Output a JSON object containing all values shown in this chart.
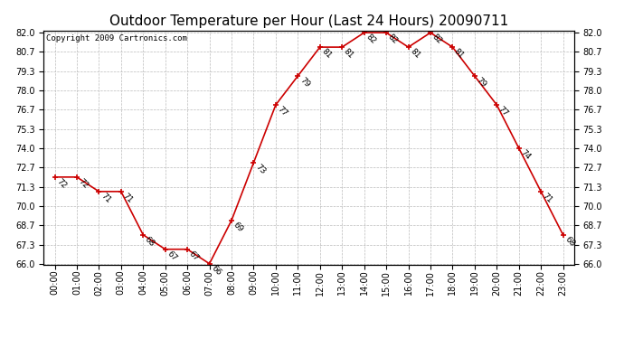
{
  "title": "Outdoor Temperature per Hour (Last 24 Hours) 20090711",
  "copyright": "Copyright 2009 Cartronics.com",
  "hours": [
    "00:00",
    "01:00",
    "02:00",
    "03:00",
    "04:00",
    "05:00",
    "06:00",
    "07:00",
    "08:00",
    "09:00",
    "10:00",
    "11:00",
    "12:00",
    "13:00",
    "14:00",
    "15:00",
    "16:00",
    "17:00",
    "18:00",
    "19:00",
    "20:00",
    "21:00",
    "22:00",
    "23:00"
  ],
  "temps": [
    72,
    72,
    71,
    71,
    68,
    67,
    67,
    66,
    69,
    73,
    77,
    79,
    81,
    81,
    82,
    82,
    81,
    82,
    81,
    79,
    77,
    74,
    71,
    68
  ],
  "line_color": "#cc0000",
  "marker_color": "#cc0000",
  "bg_color": "#ffffff",
  "grid_color": "#bbbbbb",
  "ylim_min": 66.0,
  "ylim_max": 82.0,
  "yticks": [
    66.0,
    67.3,
    68.7,
    70.0,
    71.3,
    72.7,
    74.0,
    75.3,
    76.7,
    78.0,
    79.3,
    80.7,
    82.0
  ],
  "title_fontsize": 11,
  "label_fontsize": 6.5,
  "tick_fontsize": 7,
  "copyright_fontsize": 6.5
}
